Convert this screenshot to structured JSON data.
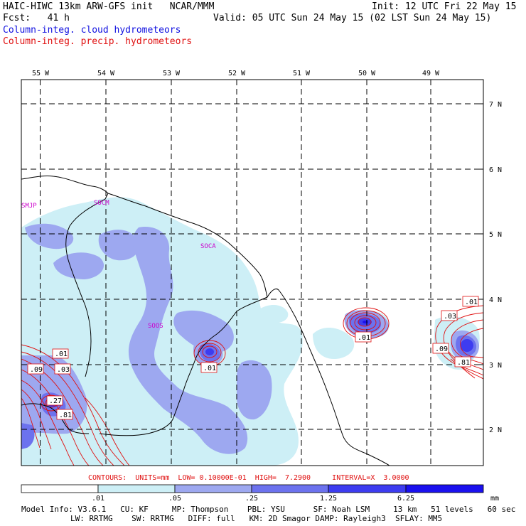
{
  "header": {
    "line1_left": "HAIC-HIWC 13km ARW-GFS init   NCAR/MMM",
    "line1_right": "Init: 12 UTC Fri 22 May 15",
    "line2_left": "Fcst:   41 h",
    "line2_right": "Valid: 05 UTC Sun 24 May 15 (02 LST Sun 24 May 15)",
    "line3": "Column-integ. cloud hydrometeors",
    "line4": "Column-integ. precip. hydrometeors"
  },
  "colors": {
    "cloud_title": "#1010e0",
    "precip_title": "#e01010",
    "fill_1": "#cdeff6",
    "fill_2": "#9da8f0",
    "fill_3": "#6c72ee",
    "fill_4": "#3d3cf0",
    "fill_5": "#1a10ee"
  },
  "map": {
    "lon_labels": [
      "55 W",
      "54 W",
      "53 W",
      "52 W",
      "51 W",
      "50 W",
      "49 W"
    ],
    "lat_labels": [
      "7 N",
      "6 N",
      "5 N",
      "4 N",
      "3 N",
      "2 N"
    ],
    "place_labels": [
      "SMJP",
      "SOCM",
      "SOCA",
      "SOOS"
    ],
    "contour_labels": [
      ".01",
      ".09",
      ".03",
      ".27",
      ".81",
      ".01",
      ".01",
      ".01",
      ".03",
      ".09",
      ".81"
    ]
  },
  "footer": {
    "contours_line": "CONTOURS:  UNITS=mm  LOW= 0.10000E-01  HIGH=  7.2900     INTERVAL=X  3.0000",
    "colorbar_labels": [
      ".01",
      ".05",
      ".25",
      "1.25",
      "6.25"
    ],
    "colorbar_unit": "mm",
    "model_info_1": "Model Info: V3.6.1   CU: KF     MP: Thompson    PBL: YSU      SF: Noah LSM     13 km   51 levels   60 sec",
    "model_info_2": "LW: RRTMG    SW: RRTMG   DIFF: full   KM: 2D Smagor DAMP: Rayleigh3  SFLAY: MM5"
  }
}
